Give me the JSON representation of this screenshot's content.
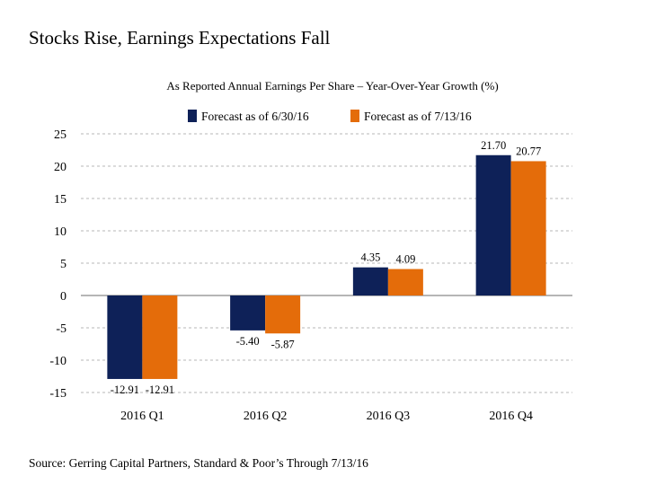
{
  "title": "Stocks Rise, Earnings Expectations Fall",
  "source": "Source: Gerring Capital Partners, Standard & Poor’s Through 7/13/16",
  "colors": {
    "series1": "#0e2158",
    "series2": "#e46c0a"
  },
  "chart_data": {
    "type": "bar",
    "title": "As Reported Annual Earnings Per Share – Year-Over-Year Growth (%)",
    "categories": [
      "2016 Q1",
      "2016 Q2",
      "2016 Q3",
      "2016 Q4"
    ],
    "series": [
      {
        "name": "Forecast as of 6/30/16",
        "values": [
          -12.91,
          -5.4,
          4.35,
          21.7
        ],
        "labels": [
          "-12.91",
          "-5.40",
          "4.35",
          "21.70"
        ]
      },
      {
        "name": "Forecast as of 7/13/16",
        "values": [
          -12.91,
          -5.87,
          4.09,
          20.77
        ],
        "labels": [
          "-12.91",
          "-5.87",
          "4.09",
          "20.77"
        ]
      }
    ],
    "ylim": [
      -15,
      25
    ],
    "yticks": [
      "25",
      "20",
      "15",
      "10",
      "5",
      "0",
      "-5",
      "-10",
      "-15"
    ],
    "ytick_values": [
      25,
      20,
      15,
      10,
      5,
      0,
      -5,
      -10,
      -15
    ],
    "grid": true,
    "legend": "top"
  }
}
